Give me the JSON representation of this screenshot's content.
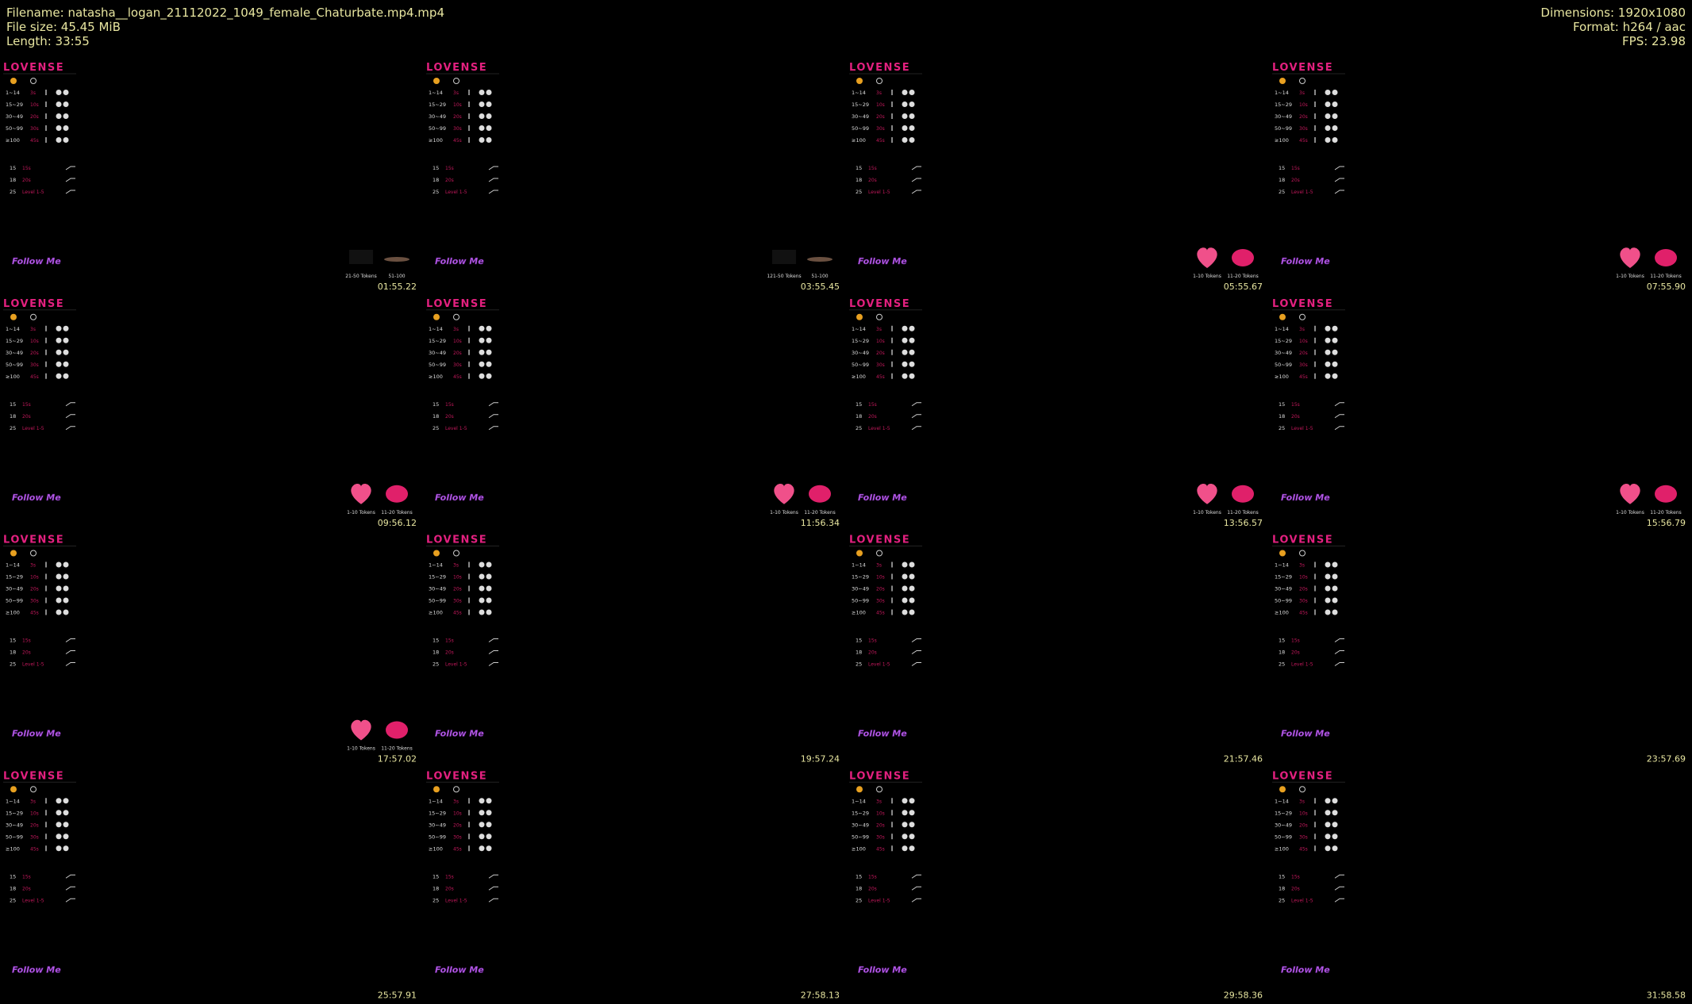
{
  "header": {
    "left": [
      "Filename: natasha__logan_21112022_1049_female_Chaturbate.mp4.mp4",
      "File size: 45.45 MiB",
      "Length: 33:55"
    ],
    "right": [
      "Dimensions: 1920x1080",
      "Format: h264 / aac",
      "FPS: 23.98"
    ]
  },
  "panel": {
    "logo": "LOVENSE",
    "levels": [
      [
        "1~14",
        "3s"
      ],
      [
        "15~29",
        "10s"
      ],
      [
        "30~49",
        "20s"
      ],
      [
        "50~99",
        "30s"
      ],
      [
        "≥100",
        "45s"
      ]
    ],
    "specials": [
      [
        "15",
        "15s"
      ],
      [
        "18",
        "20s"
      ],
      [
        "25",
        "Level 1-5"
      ]
    ],
    "follow": "Follow Me"
  },
  "tiles": [
    {
      "time": "01:55.22",
      "tokens": [
        "21-50 Tokens",
        "51-100"
      ],
      "sticker": "dark"
    },
    {
      "time": "03:55.45",
      "tokens": [
        "121-50 Tokens",
        "51-100"
      ],
      "sticker": "dark"
    },
    {
      "time": "05:55.67",
      "tokens": [
        "1-10 Tokens",
        "11-20 Tokens"
      ],
      "sticker": "love"
    },
    {
      "time": "07:55.90",
      "tokens": [
        "1-10 Tokens",
        "11-20 Tokens"
      ],
      "sticker": "love"
    },
    {
      "time": "09:56.12",
      "tokens": [
        "1-10 Tokens",
        "11-20 Tokens"
      ],
      "sticker": "love"
    },
    {
      "time": "11:56.34",
      "tokens": [
        "1-10 Tokens",
        "11-20 Tokens"
      ],
      "sticker": "love"
    },
    {
      "time": "13:56.57",
      "tokens": [
        "1-10 Tokens",
        "11-20 Tokens"
      ],
      "sticker": "love"
    },
    {
      "time": "15:56.79",
      "tokens": [
        "1-10 Tokens",
        "11-20 Tokens"
      ],
      "sticker": "love"
    },
    {
      "time": "17:57.02",
      "tokens": [
        "1-10 Tokens",
        "11-20 Tokens"
      ],
      "sticker": "love"
    },
    {
      "time": "19:57.24"
    },
    {
      "time": "21:57.46"
    },
    {
      "time": "23:57.69"
    },
    {
      "time": "25:57.91"
    },
    {
      "time": "27:58.13"
    },
    {
      "time": "29:58.36"
    },
    {
      "time": "31:58.58"
    }
  ]
}
